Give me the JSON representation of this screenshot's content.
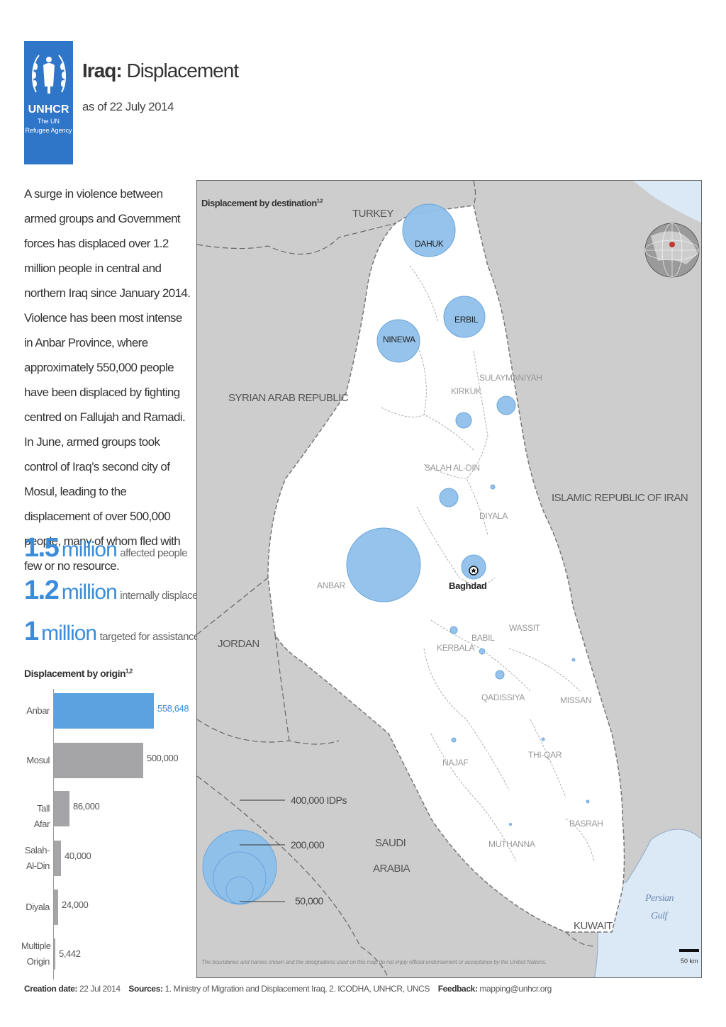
{
  "logo": {
    "org": "UNHCR",
    "tagline1": "The UN",
    "tagline2": "Refugee Agency"
  },
  "header": {
    "title_bold": "Iraq:",
    "title_rest": "Displacement",
    "subtitle": "as of 22 July 2014"
  },
  "intro_text": "A surge in violence between armed groups and Government forces has displaced over 1.2 million people in central and northern Iraq since January 2014. Violence has been most intense in Anbar Province, where approximately 550,000 people have been displaced by fighting centred on Fallujah and Ramadi. In June, armed groups took control of Iraq’s second city of Mosul, leading to the displacement of over 500,000 people, many of whom fled with few or no resource.",
  "stats": [
    {
      "number": "1.5",
      "unit": "million",
      "desc": "affected people"
    },
    {
      "number": "1.2",
      "unit": "million",
      "desc": "internally displaced"
    },
    {
      "number": "1",
      "unit": "million",
      "desc": "targeted for assistance"
    }
  ],
  "origin_chart": {
    "title": "Displacement by origin",
    "title_sup": "1,2",
    "bars": [
      {
        "label": "Anbar",
        "value": 558648,
        "value_text": "558,648",
        "color": "#5aa3e0"
      },
      {
        "label": "Mosul",
        "value": 500000,
        "value_text": "500,000",
        "color": "#a5a5a7"
      },
      {
        "label": "Tall Afar",
        "value": 86000,
        "value_text": "86,000",
        "color": "#a5a5a7"
      },
      {
        "label": "Salah-Al-Din",
        "value": 40000,
        "value_text": "40,000",
        "color": "#a5a5a7"
      },
      {
        "label": "Diyala",
        "value": 24000,
        "value_text": "24,000",
        "color": "#a5a5a7"
      },
      {
        "label": "Multiple Origin",
        "value": 5442,
        "value_text": "5,442",
        "color": "#a5a5a7"
      }
    ]
  },
  "map": {
    "legend_title": "Displacement by destination",
    "legend_sup": "1,2",
    "countries": [
      "TURKEY",
      "SYRIAN ARAB REPUBLIC",
      "ISLAMIC REPUBLIC OF IRAN",
      "JORDAN",
      "SAUDI",
      "ARABIA",
      "KUWAIT"
    ],
    "sea": [
      "Persian",
      "Gulf"
    ],
    "capital": "Baghdad",
    "provinces": [
      "DAHUK",
      "ERBIL",
      "NINEWA",
      "KIRKUK",
      "SULAYMANIYAH",
      "SALAH AL-DIN",
      "DIYALA",
      "ANBAR",
      "WASSIT",
      "BABIL",
      "KERBALA",
      "QADISSIYA",
      "MISSAN",
      "NAJAF",
      "THI-QAR",
      "BASRAH",
      "MUTHANNA"
    ],
    "size_legend": [
      "400,000 IDPs",
      "200,000",
      "50,000"
    ],
    "scale_label": "50 km",
    "disclaimer": "The boundaries and names shown and the designations used on this map do not imply official endorsement or acceptance by the United Nations.",
    "bubble_color": "#8fc0ea"
  },
  "footer": {
    "creation_label": "Creation date:",
    "creation_value": "22 Jul 2014",
    "sources_label": "Sources:",
    "sources_value": "1. Ministry of Migration and Displacement Iraq, 2. ICODHA, UNHCR, UNCS",
    "feedback_label": "Feedback:",
    "feedback_value": "mapping@unhcr.org"
  }
}
